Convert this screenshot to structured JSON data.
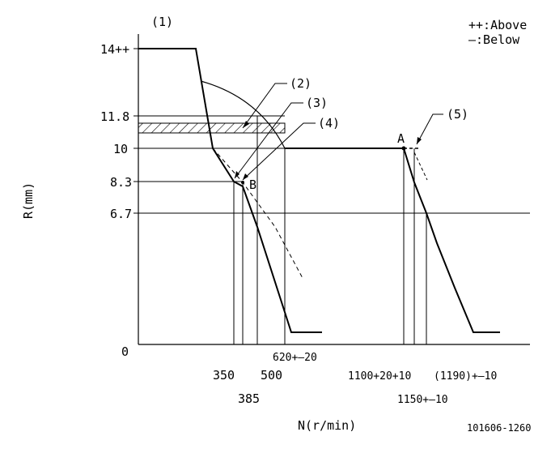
{
  "legend": {
    "above": "++:Above",
    "below": "—:Below"
  },
  "axes": {
    "y_label": "R(mm)",
    "x_label": "N(r/min)",
    "y_ticks": [
      "14++",
      "11.8",
      "10",
      "8.3",
      "6.7",
      "0"
    ],
    "x_ticks_top": [
      "350",
      "500",
      "620+–20",
      "1100+20+10",
      "(1190)+–10"
    ],
    "x_ticks_bottom": [
      "385",
      "1150+–10"
    ]
  },
  "callouts": {
    "c1": "(1)",
    "c2": "(2)",
    "c3": "(3)",
    "c4": "(4)",
    "c5": "(5)"
  },
  "points": {
    "a": "A",
    "b": "B"
  },
  "code": "101606-1260"
}
